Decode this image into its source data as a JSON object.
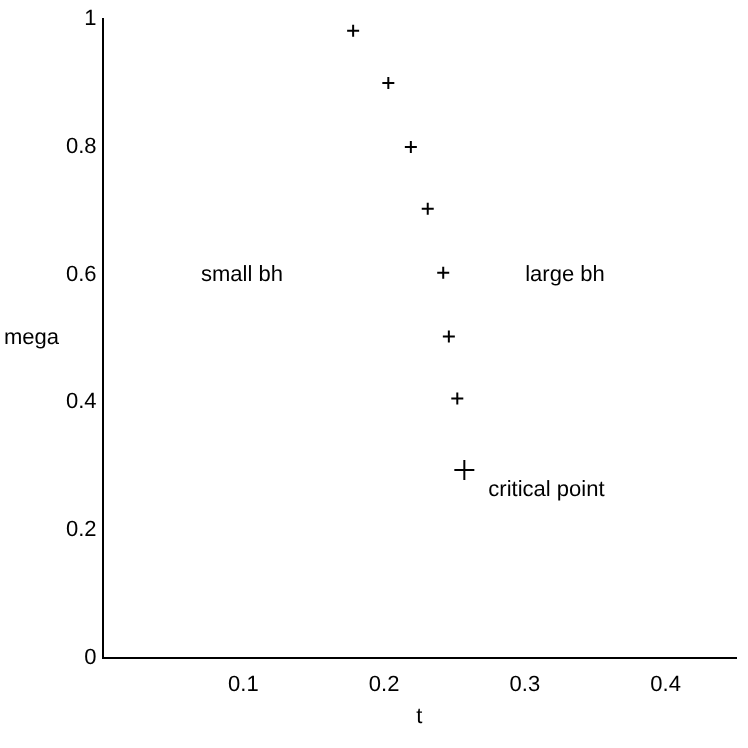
{
  "chart_data": {
    "type": "scatter",
    "xlabel": "t",
    "ylabel": "mega",
    "xlim": [
      0,
      0.45
    ],
    "ylim": [
      0,
      1
    ],
    "xticks": [
      0.1,
      0.2,
      0.3,
      0.4
    ],
    "yticks": [
      0,
      0.2,
      0.4,
      0.6,
      0.8,
      1
    ],
    "grid": false,
    "legend": false,
    "marker": "cross",
    "series": [
      {
        "color": "#000000",
        "x": [
          0.178,
          0.203,
          0.219,
          0.231,
          0.242,
          0.246,
          0.252
        ],
        "values": [
          0.982,
          0.9,
          0.8,
          0.703,
          0.603,
          0.503,
          0.406
        ]
      },
      {
        "color": "#000000",
        "x": [
          0.257
        ],
        "values": [
          0.294
        ]
      }
    ],
    "annotations": [
      "small bh",
      "large bh",
      {
        "text": "critical point",
        "x": 0.257,
        "y": 0.294
      }
    ]
  }
}
